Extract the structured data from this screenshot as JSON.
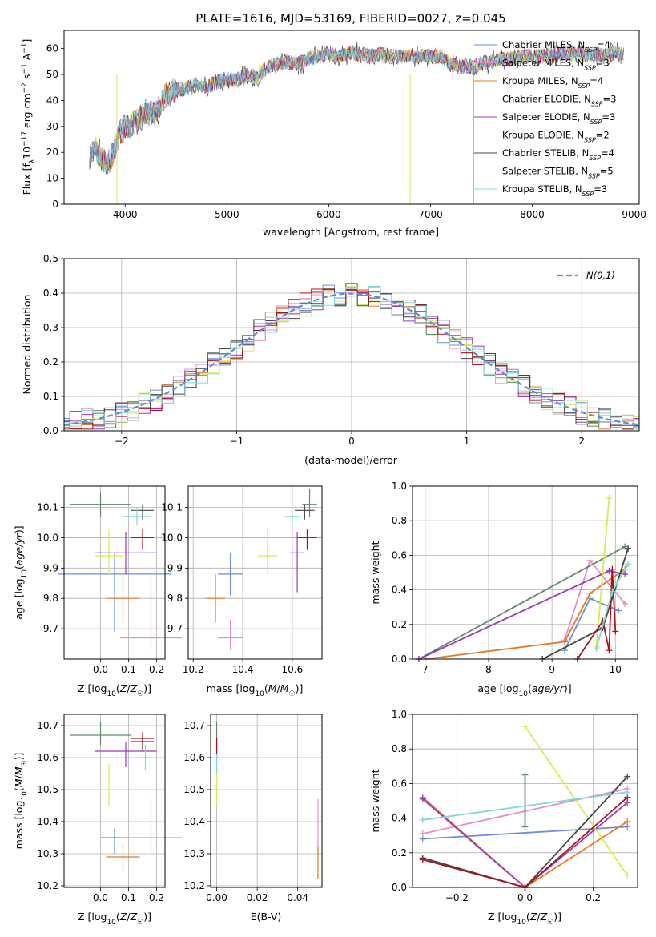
{
  "title": "PLATE=1616, MJD=53169, FIBERID=0027, z=0.045",
  "colors": {
    "Chabrier MILES": "#6a8fd8",
    "Salpeter MILES": "#e48fc8",
    "Kroupa MILES": "#e07b2a",
    "Chabrier ELODIE": "#5f8a68",
    "Salpeter ELODIE": "#9a39b8",
    "Kroupa ELODIE": "#d8ea55",
    "Chabrier STELIB": "#444444",
    "Salpeter STELIB": "#a8161d",
    "Kroupa STELIB": "#7fd8d8",
    "gauss": "#5b8bd9"
  },
  "chart_data": [
    {
      "type": "line",
      "id": "spectrum",
      "xlabel": "wavelength [Angstrom, rest frame]",
      "ylabel": "Flux [f_λ10^-17 erg cm^-2 s^-1 A^-1]",
      "xlim": [
        3400,
        9050
      ],
      "ylim": [
        0,
        67
      ],
      "xticks": [
        4000,
        5000,
        6000,
        7000,
        8000,
        9000
      ],
      "yticks": [
        0,
        10,
        20,
        30,
        40,
        50,
        60
      ],
      "legend_position": "top-right",
      "spectrum_x": [
        3650,
        3700,
        3750,
        3800,
        3850,
        3900,
        3950,
        4000,
        4100,
        4200,
        4300,
        4400,
        4500,
        4600,
        4700,
        4800,
        4900,
        5000,
        5100,
        5200,
        5300,
        5400,
        5500,
        5600,
        5700,
        5800,
        5900,
        6000,
        6100,
        6200,
        6300,
        6400,
        6500,
        6600,
        6700,
        6800,
        6900,
        7000,
        7100,
        7200,
        7300,
        7400,
        7500,
        7600,
        7700,
        7800,
        7900,
        8000,
        8100,
        8200,
        8300,
        8400,
        8500,
        8600,
        8700,
        8800,
        8900
      ],
      "spectrum_y": [
        18,
        22,
        19,
        16,
        17,
        22,
        28,
        29,
        32,
        36,
        35,
        42,
        44,
        45,
        46,
        45,
        47,
        48,
        48,
        50,
        49,
        53,
        54,
        55,
        54,
        56,
        57,
        58,
        57,
        58,
        58,
        57,
        58,
        57,
        57,
        57,
        57,
        57,
        57,
        54,
        53,
        53,
        54,
        55,
        56,
        56,
        57,
        57,
        57,
        58,
        58,
        58,
        58,
        58,
        57,
        58,
        58
      ],
      "dips": [
        {
          "series": "Kroupa ELODIE",
          "x": 3920
        },
        {
          "series": "Kroupa ELODIE",
          "x": 6800
        },
        {
          "series": "Salpeter STELIB",
          "x": 7420
        }
      ],
      "series": [
        {
          "name": "Chabrier MILES",
          "nssp": "4"
        },
        {
          "name": "Salpeter MILES",
          "nssp": "3"
        },
        {
          "name": "Kroupa MILES",
          "nssp": "4"
        },
        {
          "name": "Chabrier ELODIE",
          "nssp": "3"
        },
        {
          "name": "Salpeter ELODIE",
          "nssp": "3"
        },
        {
          "name": "Kroupa ELODIE",
          "nssp": "2"
        },
        {
          "name": "Chabrier STELIB",
          "nssp": "4"
        },
        {
          "name": "Salpeter STELIB",
          "nssp": "5"
        },
        {
          "name": "Kroupa STELIB",
          "nssp": "3"
        }
      ]
    },
    {
      "type": "histogram",
      "id": "residuals",
      "xlabel": "(data-model)/error",
      "ylabel": "Normed distribution",
      "xlim": [
        -2.5,
        2.5
      ],
      "ylim": [
        0,
        0.5
      ],
      "xticks": [
        -2,
        -1,
        0,
        1,
        2
      ],
      "yticks": [
        0.0,
        0.1,
        0.2,
        0.3,
        0.4,
        0.5
      ],
      "legend": "N(0,1)",
      "legend_position": "top-right"
    },
    {
      "type": "errorbar",
      "id": "age-vs-Z",
      "xlabel": "Z [log10(Z/Z☉)]",
      "ylabel": "age  [log10(age/yr)]",
      "xlim": [
        -0.13,
        0.23
      ],
      "ylim": [
        9.6,
        10.17
      ],
      "xticks": [
        0.0,
        0.1,
        0.2
      ],
      "yticks": [
        9.7,
        9.8,
        9.9,
        10.0,
        10.1
      ],
      "points": [
        {
          "series": "Chabrier MILES",
          "x": 0.05,
          "xerr": 0.2,
          "y": 9.88,
          "yerr": [
            0.19,
            0.07
          ]
        },
        {
          "series": "Salpeter MILES",
          "x": 0.18,
          "xerr": 0.11,
          "y": 9.67,
          "yerr": [
            0.04,
            0.2
          ]
        },
        {
          "series": "Kroupa MILES",
          "x": 0.08,
          "xerr": 0.06,
          "y": 9.8,
          "yerr": [
            0.08,
            0.08
          ]
        },
        {
          "series": "Chabrier ELODIE",
          "x": 0.0,
          "xerr": 0.11,
          "y": 10.11,
          "yerr": [
            0.04,
            0.04
          ]
        },
        {
          "series": "Salpeter ELODIE",
          "x": 0.09,
          "xerr": 0.11,
          "y": 9.95,
          "yerr": [
            0.07,
            0.07
          ]
        },
        {
          "series": "Kroupa ELODIE",
          "x": 0.03,
          "xerr": 0.05,
          "y": 9.94,
          "yerr": [
            0.06,
            0.09
          ]
        },
        {
          "series": "Chabrier STELIB",
          "x": 0.15,
          "xerr": 0.04,
          "y": 10.09,
          "yerr": [
            0.03,
            0.02
          ]
        },
        {
          "series": "Salpeter STELIB",
          "x": 0.15,
          "xerr": 0.04,
          "y": 10.0,
          "yerr": [
            0.04,
            0.03
          ]
        },
        {
          "series": "Kroupa STELIB",
          "x": 0.13,
          "xerr": 0.05,
          "y": 10.07,
          "yerr": [
            0.03,
            0.03
          ]
        }
      ]
    },
    {
      "type": "errorbar",
      "id": "age-vs-mass",
      "xlabel": "mass [log10(M/M☉)]",
      "ylabel": "",
      "xlim": [
        10.18,
        10.72
      ],
      "ylim": [
        9.6,
        10.17
      ],
      "xticks": [
        10.2,
        10.4,
        10.6
      ],
      "yticks": [
        9.7,
        9.8,
        9.9,
        10.0,
        10.1
      ],
      "points": [
        {
          "series": "Chabrier MILES",
          "x": 10.35,
          "xerr": 0.05,
          "y": 9.88,
          "yerr": [
            0.07,
            0.07
          ]
        },
        {
          "series": "Salpeter MILES",
          "x": 10.35,
          "xerr": 0.05,
          "y": 9.67,
          "yerr": [
            0.04,
            0.06
          ]
        },
        {
          "series": "Kroupa MILES",
          "x": 10.29,
          "xerr": 0.04,
          "y": 9.8,
          "yerr": [
            0.08,
            0.08
          ]
        },
        {
          "series": "Chabrier ELODIE",
          "x": 10.67,
          "xerr": 0.03,
          "y": 10.11,
          "yerr": [
            0.04,
            0.05
          ]
        },
        {
          "series": "Salpeter ELODIE",
          "x": 10.62,
          "xerr": 0.03,
          "y": 9.95,
          "yerr": [
            0.13,
            0.07
          ]
        },
        {
          "series": "Kroupa ELODIE",
          "x": 10.5,
          "xerr": 0.04,
          "y": 9.94,
          "yerr": [
            0.06,
            0.09
          ]
        },
        {
          "series": "Chabrier STELIB",
          "x": 10.65,
          "xerr": 0.04,
          "y": 10.09,
          "yerr": [
            0.03,
            0.02
          ]
        },
        {
          "series": "Salpeter STELIB",
          "x": 10.66,
          "xerr": 0.04,
          "y": 10.0,
          "yerr": [
            0.04,
            0.03
          ]
        },
        {
          "series": "Kroupa STELIB",
          "x": 10.6,
          "xerr": 0.03,
          "y": 10.07,
          "yerr": [
            0.03,
            0.03
          ]
        }
      ]
    },
    {
      "type": "line",
      "id": "weight-vs-age",
      "xlabel": "age  [log10(age/yr)]",
      "ylabel": "mass weight",
      "xlim": [
        6.8,
        10.35
      ],
      "ylim": [
        0,
        1.0
      ],
      "xticks": [
        7,
        8,
        9,
        10
      ],
      "yticks": [
        0.0,
        0.2,
        0.4,
        0.6,
        0.8,
        1.0
      ],
      "series": [
        {
          "name": "Chabrier MILES",
          "x": [
            9.2,
            9.6,
            10.05
          ],
          "y": [
            0.05,
            0.35,
            0.28
          ]
        },
        {
          "name": "Salpeter MILES",
          "x": [
            9.2,
            9.6,
            10.15
          ],
          "y": [
            0.11,
            0.57,
            0.32
          ]
        },
        {
          "name": "Kroupa MILES",
          "x": [
            7.0,
            9.2,
            9.6,
            10.15
          ],
          "y": [
            0.0,
            0.1,
            0.38,
            0.52
          ]
        },
        {
          "name": "Chabrier ELODIE",
          "x": [
            6.9,
            10.15
          ],
          "y": [
            0.0,
            0.65
          ]
        },
        {
          "name": "Salpeter ELODIE",
          "x": [
            6.9,
            9.9,
            10.15
          ],
          "y": [
            0.0,
            0.51,
            0.49
          ]
        },
        {
          "name": "Kroupa ELODIE",
          "x": [
            9.7,
            9.9
          ],
          "y": [
            0.07,
            0.93
          ]
        },
        {
          "name": "Chabrier STELIB",
          "x": [
            8.85,
            9.8,
            10.2
          ],
          "y": [
            0.0,
            0.18,
            0.64
          ]
        },
        {
          "name": "Salpeter STELIB",
          "x": [
            9.4,
            9.8,
            9.9,
            9.95,
            10.0
          ],
          "y": [
            0.0,
            0.22,
            0.05,
            0.52,
            0.16
          ]
        },
        {
          "name": "Kroupa STELIB",
          "x": [
            9.7,
            9.95,
            10.2
          ],
          "y": [
            0.06,
            0.39,
            0.55
          ]
        }
      ]
    },
    {
      "type": "errorbar",
      "id": "mass-vs-Z",
      "xlabel": "Z [log10(Z/Z☉)]",
      "ylabel": "mass [log10(M/M☉)]",
      "xlim": [
        -0.13,
        0.23
      ],
      "ylim": [
        10.195,
        10.735
      ],
      "xticks": [
        0.0,
        0.1,
        0.2
      ],
      "yticks": [
        10.2,
        10.3,
        10.4,
        10.5,
        10.6,
        10.7
      ],
      "points": [
        {
          "series": "Chabrier MILES",
          "x": 0.05,
          "xerr": 0.05,
          "y": 10.35,
          "yerr": [
            0.05,
            0.03
          ]
        },
        {
          "series": "Salpeter MILES",
          "x": 0.18,
          "xerr": 0.11,
          "y": 10.35,
          "yerr": [
            0.04,
            0.12
          ]
        },
        {
          "series": "Kroupa MILES",
          "x": 0.08,
          "xerr": 0.06,
          "y": 10.29,
          "yerr": [
            0.04,
            0.04
          ]
        },
        {
          "series": "Chabrier ELODIE",
          "x": 0.0,
          "xerr": 0.11,
          "y": 10.67,
          "yerr": [
            0.03,
            0.04
          ]
        },
        {
          "series": "Salpeter ELODIE",
          "x": 0.09,
          "xerr": 0.11,
          "y": 10.62,
          "yerr": [
            0.05,
            0.03
          ]
        },
        {
          "series": "Kroupa ELODIE",
          "x": 0.03,
          "xerr": 0.05,
          "y": 10.5,
          "yerr": [
            0.05,
            0.08
          ]
        },
        {
          "series": "Chabrier STELIB",
          "x": 0.15,
          "xerr": 0.04,
          "y": 10.65,
          "yerr": [
            0.03,
            0.02
          ]
        },
        {
          "series": "Salpeter STELIB",
          "x": 0.15,
          "xerr": 0.04,
          "y": 10.66,
          "yerr": [
            0.03,
            0.02
          ]
        },
        {
          "series": "Kroupa STELIB",
          "x": 0.16,
          "xerr": 0.02,
          "y": 10.6,
          "yerr": [
            0.04,
            0.04
          ]
        }
      ]
    },
    {
      "type": "errorbar",
      "id": "mass-vs-ebv",
      "xlabel": "E(B-V)",
      "ylabel": "",
      "xlim": [
        -0.003,
        0.052
      ],
      "ylim": [
        10.195,
        10.735
      ],
      "xticks": [
        0.0,
        0.02,
        0.04
      ],
      "yticks": [
        10.2,
        10.3,
        10.4,
        10.5,
        10.6,
        10.7
      ],
      "points": [
        {
          "series": "Chabrier ELODIE",
          "x": 0.0,
          "xerr": 0,
          "y": 10.67,
          "yerr": [
            0.05,
            0.04
          ]
        },
        {
          "series": "Salpeter STELIB",
          "x": 0.0,
          "xerr": 0,
          "y": 10.63,
          "yerr": [
            0.03,
            0.03
          ]
        },
        {
          "series": "Kroupa STELIB",
          "x": 0.0,
          "xerr": 0,
          "y": 10.57,
          "yerr": [
            0.04,
            0.04
          ]
        },
        {
          "series": "Kroupa ELODIE",
          "x": 0.0,
          "xerr": 0,
          "y": 10.5,
          "yerr": [
            0.05,
            0.05
          ]
        },
        {
          "series": "Salpeter MILES",
          "x": 0.05,
          "xerr": 0,
          "y": 10.4,
          "yerr": [
            0.1,
            0.07
          ]
        },
        {
          "series": "Kroupa MILES",
          "x": 0.05,
          "xerr": 0,
          "y": 10.27,
          "yerr": [
            0.05,
            0.05
          ]
        }
      ]
    },
    {
      "type": "line",
      "id": "weight-vs-Z",
      "xlabel": "Z [log10(Z/Z☉)]",
      "ylabel": "mass weight",
      "xlim": [
        -0.33,
        0.33
      ],
      "ylim": [
        0,
        1.0
      ],
      "xticks": [
        -0.2,
        0.0,
        0.2
      ],
      "yticks": [
        0.0,
        0.2,
        0.4,
        0.6,
        0.8,
        1.0
      ],
      "series": [
        {
          "name": "Chabrier MILES",
          "x": [
            -0.3,
            0.3
          ],
          "y": [
            0.28,
            0.35
          ]
        },
        {
          "name": "Salpeter MILES",
          "x": [
            -0.3,
            0.3
          ],
          "y": [
            0.31,
            0.57
          ]
        },
        {
          "name": "Kroupa MILES",
          "x": [
            -0.3,
            0.0,
            0.3
          ],
          "y": [
            0.52,
            0.0,
            0.38
          ]
        },
        {
          "name": "Chabrier ELODIE",
          "x": [
            0.0,
            0.0
          ],
          "y": [
            0.35,
            0.65
          ]
        },
        {
          "name": "Salpeter ELODIE",
          "x": [
            -0.3,
            0.0,
            0.3
          ],
          "y": [
            0.51,
            0.0,
            0.49
          ]
        },
        {
          "name": "Kroupa ELODIE",
          "x": [
            0.0,
            0.3
          ],
          "y": [
            0.93,
            0.07
          ]
        },
        {
          "name": "Chabrier STELIB",
          "x": [
            -0.3,
            0.0,
            0.3
          ],
          "y": [
            0.17,
            0.0,
            0.64
          ]
        },
        {
          "name": "Salpeter STELIB",
          "x": [
            -0.3,
            0.0,
            0.3
          ],
          "y": [
            0.16,
            0.0,
            0.52
          ]
        },
        {
          "name": "Kroupa STELIB",
          "x": [
            -0.3,
            0.3
          ],
          "y": [
            0.39,
            0.55
          ]
        }
      ]
    }
  ]
}
